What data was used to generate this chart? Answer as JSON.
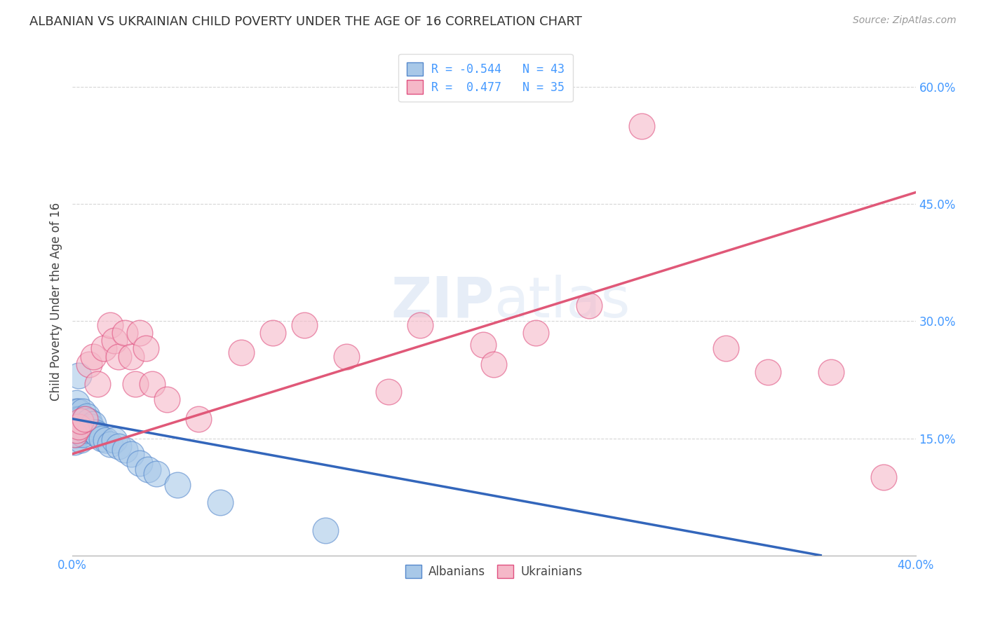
{
  "title": "ALBANIAN VS UKRAINIAN CHILD POVERTY UNDER THE AGE OF 16 CORRELATION CHART",
  "source": "Source: ZipAtlas.com",
  "ylabel": "Child Poverty Under the Age of 16",
  "xlim": [
    0.0,
    0.4
  ],
  "ylim": [
    0.0,
    0.65
  ],
  "ytick_positions": [
    0.15,
    0.3,
    0.45,
    0.6
  ],
  "ytick_labels": [
    "15.0%",
    "30.0%",
    "45.0%",
    "60.0%"
  ],
  "xtick_positions": [
    0.0,
    0.1,
    0.2,
    0.3,
    0.4
  ],
  "xtick_labels": [
    "0.0%",
    "",
    "",
    "",
    "40.0%"
  ],
  "albanian_color": "#a8c8e8",
  "ukrainian_color": "#f5b8c8",
  "albanian_edge_color": "#5588cc",
  "ukrainian_edge_color": "#e05080",
  "albanian_line_color": "#3366bb",
  "ukrainian_line_color": "#e05878",
  "background_color": "#ffffff",
  "grid_color": "#cccccc",
  "tick_color": "#4499ff",
  "albanian_x": [
    0.001,
    0.001,
    0.001,
    0.001,
    0.002,
    0.002,
    0.002,
    0.002,
    0.002,
    0.003,
    0.003,
    0.003,
    0.003,
    0.003,
    0.004,
    0.004,
    0.004,
    0.004,
    0.005,
    0.005,
    0.005,
    0.006,
    0.006,
    0.007,
    0.007,
    0.008,
    0.009,
    0.01,
    0.011,
    0.012,
    0.014,
    0.016,
    0.018,
    0.02,
    0.022,
    0.025,
    0.028,
    0.032,
    0.036,
    0.04,
    0.05,
    0.07,
    0.12
  ],
  "albanian_y": [
    0.175,
    0.165,
    0.155,
    0.145,
    0.195,
    0.185,
    0.175,
    0.165,
    0.155,
    0.23,
    0.185,
    0.175,
    0.165,
    0.155,
    0.175,
    0.165,
    0.158,
    0.148,
    0.185,
    0.168,
    0.155,
    0.175,
    0.16,
    0.178,
    0.162,
    0.172,
    0.165,
    0.168,
    0.158,
    0.155,
    0.15,
    0.148,
    0.142,
    0.148,
    0.14,
    0.135,
    0.13,
    0.118,
    0.11,
    0.105,
    0.09,
    0.068,
    0.032
  ],
  "ukrainian_x": [
    0.001,
    0.002,
    0.003,
    0.004,
    0.006,
    0.008,
    0.01,
    0.012,
    0.015,
    0.018,
    0.02,
    0.022,
    0.025,
    0.028,
    0.03,
    0.032,
    0.035,
    0.038,
    0.045,
    0.06,
    0.08,
    0.095,
    0.11,
    0.13,
    0.15,
    0.165,
    0.195,
    0.2,
    0.22,
    0.245,
    0.27,
    0.31,
    0.33,
    0.36,
    0.385
  ],
  "ukrainian_y": [
    0.155,
    0.16,
    0.165,
    0.172,
    0.175,
    0.245,
    0.255,
    0.22,
    0.265,
    0.295,
    0.275,
    0.255,
    0.285,
    0.255,
    0.22,
    0.285,
    0.265,
    0.22,
    0.2,
    0.175,
    0.26,
    0.285,
    0.295,
    0.255,
    0.21,
    0.295,
    0.27,
    0.245,
    0.285,
    0.32,
    0.55,
    0.265,
    0.235,
    0.235,
    0.1
  ],
  "alb_trend_x0": 0.0,
  "alb_trend_y0": 0.175,
  "alb_trend_x1": 0.355,
  "alb_trend_y1": 0.0,
  "ukr_trend_x0": 0.0,
  "ukr_trend_y0": 0.13,
  "ukr_trend_x1": 0.4,
  "ukr_trend_y1": 0.465
}
